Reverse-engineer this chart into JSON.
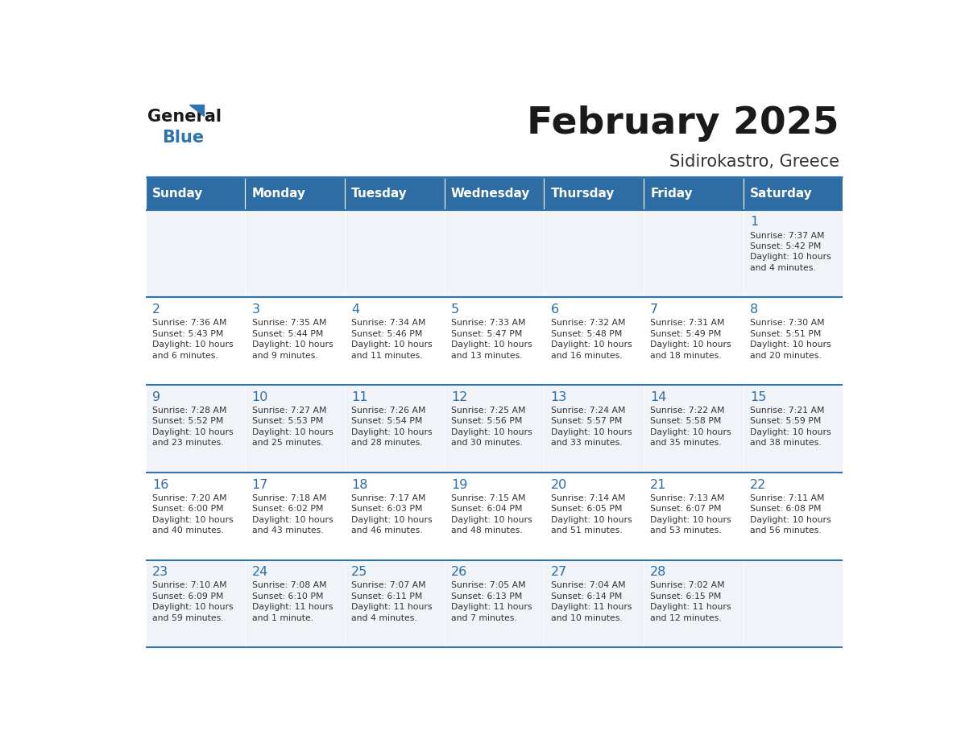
{
  "title": "February 2025",
  "subtitle": "Sidirokastro, Greece",
  "days_of_week": [
    "Sunday",
    "Monday",
    "Tuesday",
    "Wednesday",
    "Thursday",
    "Friday",
    "Saturday"
  ],
  "header_bg": "#2E6DA4",
  "header_text_color": "#FFFFFF",
  "cell_text_color": "#333333",
  "day_num_color": "#2E6DA4",
  "divider_color": "#2E75B0",
  "background_color": "#FFFFFF",
  "title_color": "#1a1a1a",
  "subtitle_color": "#333333",
  "row_bg_colors": [
    "#f0f4f8",
    "#ffffff",
    "#f0f4f8",
    "#ffffff",
    "#f0f4f8"
  ],
  "calendar": [
    [
      null,
      null,
      null,
      null,
      null,
      null,
      {
        "day": 1,
        "sunrise": "7:37 AM",
        "sunset": "5:42 PM",
        "daylight": "10 hours and 4 minutes."
      }
    ],
    [
      {
        "day": 2,
        "sunrise": "7:36 AM",
        "sunset": "5:43 PM",
        "daylight": "10 hours and 6 minutes."
      },
      {
        "day": 3,
        "sunrise": "7:35 AM",
        "sunset": "5:44 PM",
        "daylight": "10 hours and 9 minutes."
      },
      {
        "day": 4,
        "sunrise": "7:34 AM",
        "sunset": "5:46 PM",
        "daylight": "10 hours and 11 minutes."
      },
      {
        "day": 5,
        "sunrise": "7:33 AM",
        "sunset": "5:47 PM",
        "daylight": "10 hours and 13 minutes."
      },
      {
        "day": 6,
        "sunrise": "7:32 AM",
        "sunset": "5:48 PM",
        "daylight": "10 hours and 16 minutes."
      },
      {
        "day": 7,
        "sunrise": "7:31 AM",
        "sunset": "5:49 PM",
        "daylight": "10 hours and 18 minutes."
      },
      {
        "day": 8,
        "sunrise": "7:30 AM",
        "sunset": "5:51 PM",
        "daylight": "10 hours and 20 minutes."
      }
    ],
    [
      {
        "day": 9,
        "sunrise": "7:28 AM",
        "sunset": "5:52 PM",
        "daylight": "10 hours and 23 minutes."
      },
      {
        "day": 10,
        "sunrise": "7:27 AM",
        "sunset": "5:53 PM",
        "daylight": "10 hours and 25 minutes."
      },
      {
        "day": 11,
        "sunrise": "7:26 AM",
        "sunset": "5:54 PM",
        "daylight": "10 hours and 28 minutes."
      },
      {
        "day": 12,
        "sunrise": "7:25 AM",
        "sunset": "5:56 PM",
        "daylight": "10 hours and 30 minutes."
      },
      {
        "day": 13,
        "sunrise": "7:24 AM",
        "sunset": "5:57 PM",
        "daylight": "10 hours and 33 minutes."
      },
      {
        "day": 14,
        "sunrise": "7:22 AM",
        "sunset": "5:58 PM",
        "daylight": "10 hours and 35 minutes."
      },
      {
        "day": 15,
        "sunrise": "7:21 AM",
        "sunset": "5:59 PM",
        "daylight": "10 hours and 38 minutes."
      }
    ],
    [
      {
        "day": 16,
        "sunrise": "7:20 AM",
        "sunset": "6:00 PM",
        "daylight": "10 hours and 40 minutes."
      },
      {
        "day": 17,
        "sunrise": "7:18 AM",
        "sunset": "6:02 PM",
        "daylight": "10 hours and 43 minutes."
      },
      {
        "day": 18,
        "sunrise": "7:17 AM",
        "sunset": "6:03 PM",
        "daylight": "10 hours and 46 minutes."
      },
      {
        "day": 19,
        "sunrise": "7:15 AM",
        "sunset": "6:04 PM",
        "daylight": "10 hours and 48 minutes."
      },
      {
        "day": 20,
        "sunrise": "7:14 AM",
        "sunset": "6:05 PM",
        "daylight": "10 hours and 51 minutes."
      },
      {
        "day": 21,
        "sunrise": "7:13 AM",
        "sunset": "6:07 PM",
        "daylight": "10 hours and 53 minutes."
      },
      {
        "day": 22,
        "sunrise": "7:11 AM",
        "sunset": "6:08 PM",
        "daylight": "10 hours and 56 minutes."
      }
    ],
    [
      {
        "day": 23,
        "sunrise": "7:10 AM",
        "sunset": "6:09 PM",
        "daylight": "10 hours and 59 minutes."
      },
      {
        "day": 24,
        "sunrise": "7:08 AM",
        "sunset": "6:10 PM",
        "daylight": "11 hours and 1 minute."
      },
      {
        "day": 25,
        "sunrise": "7:07 AM",
        "sunset": "6:11 PM",
        "daylight": "11 hours and 4 minutes."
      },
      {
        "day": 26,
        "sunrise": "7:05 AM",
        "sunset": "6:13 PM",
        "daylight": "11 hours and 7 minutes."
      },
      {
        "day": 27,
        "sunrise": "7:04 AM",
        "sunset": "6:14 PM",
        "daylight": "11 hours and 10 minutes."
      },
      {
        "day": 28,
        "sunrise": "7:02 AM",
        "sunset": "6:15 PM",
        "daylight": "11 hours and 12 minutes."
      },
      null
    ]
  ]
}
